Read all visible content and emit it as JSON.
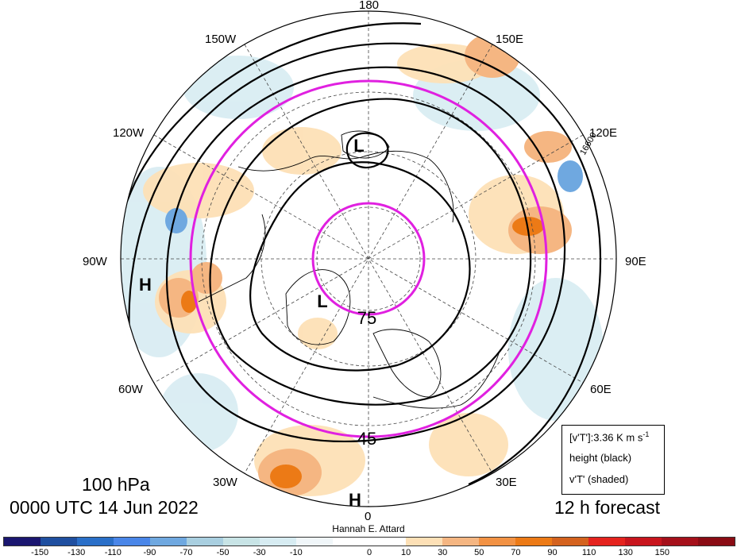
{
  "map": {
    "lon_labels": {
      "top": "180",
      "bottom": "0",
      "left": "90W",
      "right": "90E",
      "nw1": "150W",
      "nw2": "120W",
      "ne1": "150E",
      "ne2": "120E",
      "sw1": "60W",
      "sw2": "30W",
      "se1": "60E",
      "se2": "30E"
    },
    "lat_circle_labels": {
      "inner": "75",
      "outer": "45"
    },
    "contour_label": "16600",
    "pressure_centers": {
      "l1": "L",
      "l2": "L",
      "h1": "H",
      "h2": "H"
    },
    "colors": {
      "height_contour": "#000000",
      "lat_circle": "#e020e0",
      "gridline": "#444444"
    }
  },
  "titles": {
    "level": "100 hPa",
    "valid_time": "0000 UTC 14 Jun 2022",
    "forecast": "12 h forecast",
    "credit": "Hannah E. Attard"
  },
  "legend": {
    "line1_prefix": "[v'T']:3.36 K m s",
    "line1_sup": "-1",
    "line2": "height (black)",
    "line3": "v'T' (shaded)"
  },
  "colorbar": {
    "colors": [
      "#1a1670",
      "#1f4fa0",
      "#2a6fc8",
      "#4a86e8",
      "#6fa8e0",
      "#a9cfe0",
      "#c8e4e6",
      "#d7ecf2",
      "#f0f6f9",
      "#ffffff",
      "#ffffff",
      "#fde0b6",
      "#f5b682",
      "#f29244",
      "#ec7a16",
      "#d4621e",
      "#e5231e",
      "#c8151d",
      "#a5101a",
      "#8a0c14"
    ],
    "ticks": [
      "-150",
      "-130",
      "-110",
      "-90",
      "-70",
      "-50",
      "-30",
      "-10",
      "0",
      "10",
      "30",
      "50",
      "70",
      "90",
      "110",
      "130",
      "150"
    ]
  }
}
